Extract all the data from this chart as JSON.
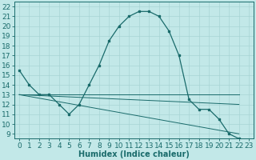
{
  "xlabel": "Humidex (Indice chaleur)",
  "bg_color": "#c2e8e8",
  "line_color": "#1a6b6b",
  "grid_color": "#a8d4d4",
  "xlim": [
    -0.5,
    23.5
  ],
  "ylim": [
    8.5,
    22.5
  ],
  "xticks": [
    0,
    1,
    2,
    3,
    4,
    5,
    6,
    7,
    8,
    9,
    10,
    11,
    12,
    13,
    14,
    15,
    16,
    17,
    18,
    19,
    20,
    21,
    22,
    23
  ],
  "yticks": [
    9,
    10,
    11,
    12,
    13,
    14,
    15,
    16,
    17,
    18,
    19,
    20,
    21,
    22
  ],
  "main_x": [
    0,
    1,
    2,
    3,
    4,
    5,
    6,
    7,
    8,
    9,
    10,
    11,
    12,
    13,
    14,
    15,
    16,
    17,
    18,
    19,
    20,
    21,
    22
  ],
  "main_y": [
    15.5,
    14.0,
    13.0,
    13.0,
    12.0,
    11.0,
    12.0,
    14.0,
    16.0,
    18.5,
    20.0,
    21.0,
    21.5,
    21.5,
    21.0,
    19.5,
    17.0,
    12.5,
    11.5,
    11.5,
    10.5,
    9.0,
    8.5
  ],
  "line2_x": [
    0,
    22
  ],
  "line2_y": [
    13.0,
    13.0
  ],
  "line3_x": [
    0,
    22
  ],
  "line3_y": [
    13.0,
    12.0
  ],
  "line4_x": [
    0,
    22
  ],
  "line4_y": [
    13.0,
    9.0
  ],
  "font_size": 6.5
}
